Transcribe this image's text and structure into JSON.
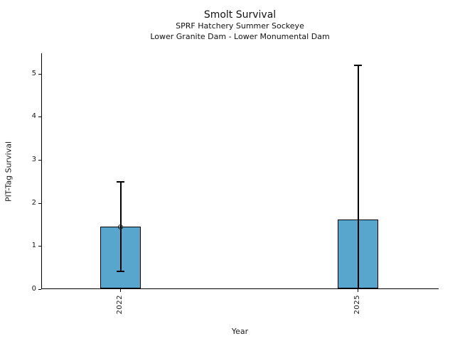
{
  "header": {
    "title": "Smolt Survival",
    "subtitle1": "SPRF Hatchery Summer Sockeye",
    "subtitle2": "Lower Granite Dam - Lower Monumental Dam"
  },
  "chart_data": {
    "type": "bar",
    "title": "Smolt Survival",
    "subtitles": [
      "SPRF Hatchery Summer Sockeye",
      "Lower Granite Dam - Lower Monumental Dam"
    ],
    "categories": [
      "2022",
      "2025"
    ],
    "values": [
      1.43,
      1.6
    ],
    "error_low": [
      0.4,
      0.0
    ],
    "error_high": [
      2.47,
      5.18
    ],
    "point_markers": [
      1.43,
      null
    ],
    "xlabel": "Year",
    "ylabel": "PIT-Tag Survival",
    "ylim": [
      0,
      5.47
    ],
    "yticks": [
      0,
      1,
      2,
      3,
      4,
      5
    ],
    "grid": false,
    "legend": null,
    "bar_color": "#58a5ce",
    "bar_edge_color": "#000000",
    "errorbar_color": "#000000",
    "background_color": "#ffffff"
  }
}
